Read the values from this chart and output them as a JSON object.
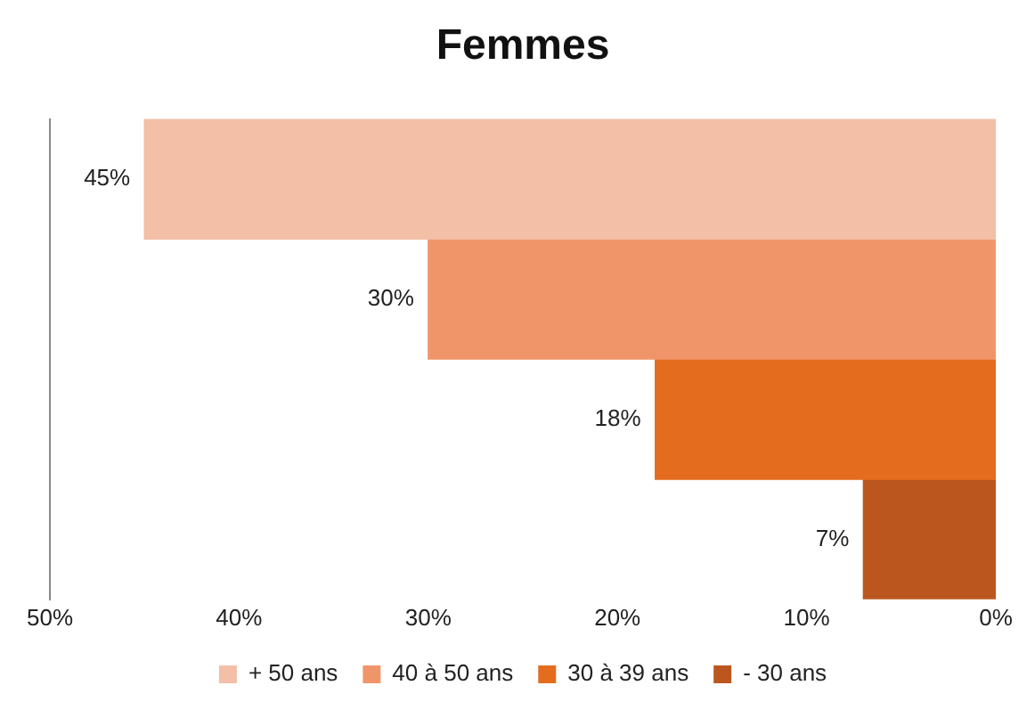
{
  "chart_data": {
    "type": "bar",
    "title": "Femmes",
    "orientation": "horizontal",
    "stacked": true,
    "categories": [
      null,
      null,
      null,
      null
    ],
    "series": [
      {
        "name": "+ 50 ans",
        "color": "#f3bfa6",
        "values": [
          45,
          null,
          null,
          null
        ],
        "value_labels": [
          "45%",
          null,
          null,
          null
        ]
      },
      {
        "name": "40 à 50 ans",
        "color": "#f0956a",
        "values": [
          null,
          30,
          null,
          null
        ],
        "value_labels": [
          null,
          "30%",
          null,
          null
        ]
      },
      {
        "name": "30 à 39 ans",
        "color": "#e36c1e",
        "values": [
          null,
          null,
          18,
          null
        ],
        "value_labels": [
          null,
          null,
          "18%",
          null
        ]
      },
      {
        "name": "- 30 ans",
        "color": "#bb571e",
        "values": [
          null,
          null,
          null,
          7
        ],
        "value_labels": [
          null,
          null,
          null,
          "7%"
        ]
      }
    ],
    "xlim": [
      50,
      0
    ],
    "xticks": [
      {
        "value": 50,
        "label": "50%"
      },
      {
        "value": 40,
        "label": "40%"
      },
      {
        "value": 30,
        "label": "30%"
      },
      {
        "value": 20,
        "label": "20%"
      },
      {
        "value": 10,
        "label": "10%"
      },
      {
        "value": 0,
        "label": "0%"
      }
    ],
    "grid": false,
    "legend": "bottom",
    "tick_labels": "x"
  }
}
